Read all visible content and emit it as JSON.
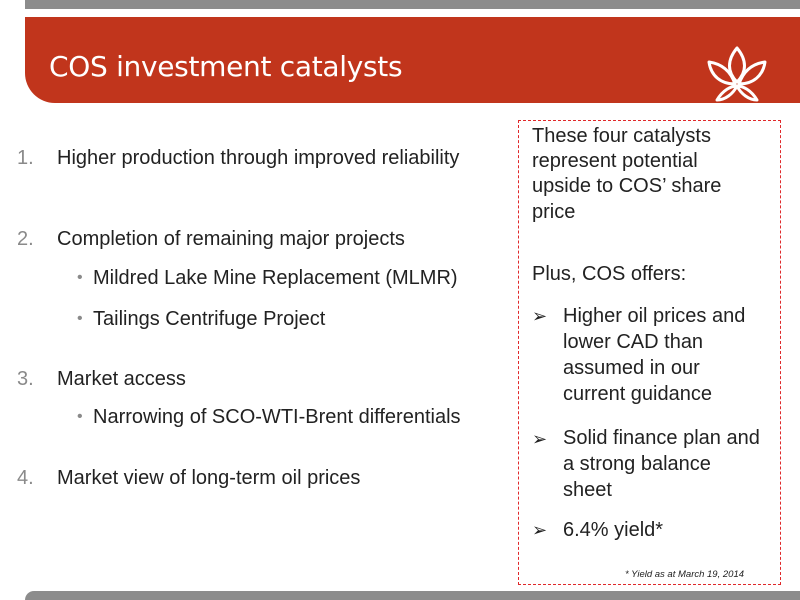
{
  "slide": {
    "title": "COS investment catalysts"
  },
  "catalysts": [
    {
      "number": "1.",
      "text": "Higher production through improved reliability",
      "subitems": []
    },
    {
      "number": "2.",
      "text": "Completion of remaining major projects",
      "subitems": [
        "Mildred Lake Mine Replacement (MLMR)",
        "Tailings Centrifuge Project"
      ]
    },
    {
      "number": "3.",
      "text": "Market access",
      "subitems": [
        "Narrowing of SCO-WTI-Brent differentials"
      ]
    },
    {
      "number": "4.",
      "text": "Market view of long-term oil prices",
      "subitems": []
    }
  ],
  "callout": {
    "intro_lines": [
      "These four catalysts",
      "represent potential",
      "upside to COS’ share",
      "price"
    ],
    "plus_line": "Plus, COS offers:",
    "points": [
      {
        "lines": [
          "Higher oil prices and",
          "lower CAD than",
          "assumed in our",
          "current guidance"
        ]
      },
      {
        "lines": [
          "Solid finance plan and",
          "a strong balance",
          "sheet"
        ]
      },
      {
        "lines": [
          "6.4% yield*"
        ]
      }
    ],
    "arrow_symbol": "➢",
    "footnote": "* Yield as at March 19, 2014"
  },
  "bullet_symbol": "•",
  "colors": {
    "header_red": "#c1351c",
    "bar_gray": "#8c8c8c",
    "dashed_border": "#e0282a",
    "number_gray": "#8a8a8a"
  },
  "logo": {
    "icon": "flower-logo-icon"
  }
}
